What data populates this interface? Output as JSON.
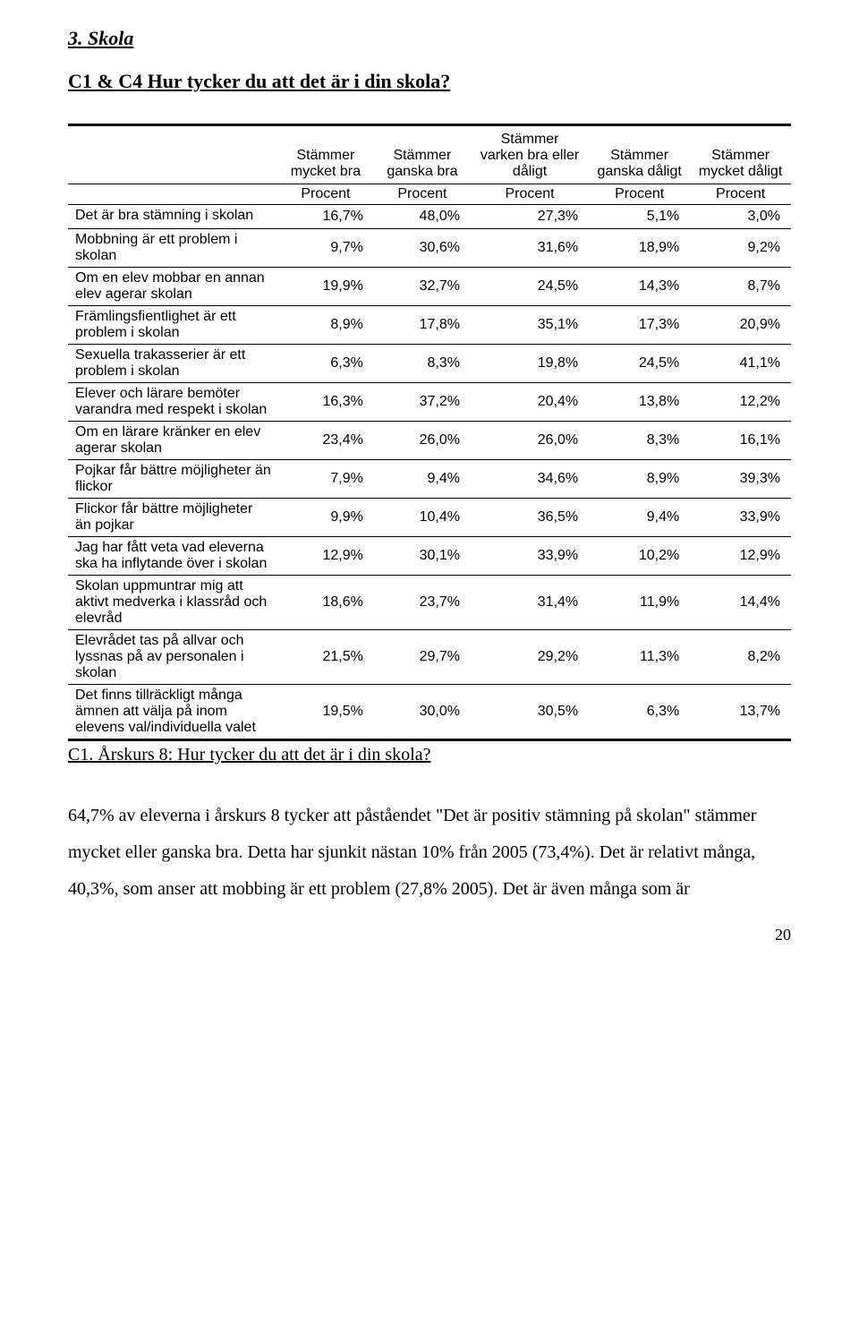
{
  "section_heading": "3. Skola",
  "sub_heading": "C1 & C4 Hur tycker du att det är i din skola?",
  "table": {
    "header1_blank": "",
    "col_headers": [
      "Stämmer mycket bra",
      "Stämmer ganska bra",
      "Stämmer varken bra eller dåligt",
      "Stämmer ganska dåligt",
      "Stämmer mycket dåligt"
    ],
    "subheader": "Procent",
    "rows": [
      {
        "label": "Det är bra stämning i skolan",
        "vals": [
          "16,7%",
          "48,0%",
          "27,3%",
          "5,1%",
          "3,0%"
        ]
      },
      {
        "label": "Mobbning är ett problem i skolan",
        "vals": [
          "9,7%",
          "30,6%",
          "31,6%",
          "18,9%",
          "9,2%"
        ]
      },
      {
        "label": "Om en elev mobbar en annan elev agerar skolan",
        "vals": [
          "19,9%",
          "32,7%",
          "24,5%",
          "14,3%",
          "8,7%"
        ]
      },
      {
        "label": "Främlingsfientlighet är ett problem i skolan",
        "vals": [
          "8,9%",
          "17,8%",
          "35,1%",
          "17,3%",
          "20,9%"
        ]
      },
      {
        "label": "Sexuella trakasserier är ett problem i skolan",
        "vals": [
          "6,3%",
          "8,3%",
          "19,8%",
          "24,5%",
          "41,1%"
        ]
      },
      {
        "label": "Elever och lärare bemöter varandra med respekt i skolan",
        "vals": [
          "16,3%",
          "37,2%",
          "20,4%",
          "13,8%",
          "12,2%"
        ]
      },
      {
        "label": "Om en lärare kränker en elev agerar skolan",
        "vals": [
          "23,4%",
          "26,0%",
          "26,0%",
          "8,3%",
          "16,1%"
        ]
      },
      {
        "label": "Pojkar får bättre möjligheter än flickor",
        "vals": [
          "7,9%",
          "9,4%",
          "34,6%",
          "8,9%",
          "39,3%"
        ]
      },
      {
        "label": "Flickor får bättre möjligheter än pojkar",
        "vals": [
          "9,9%",
          "10,4%",
          "36,5%",
          "9,4%",
          "33,9%"
        ]
      },
      {
        "label": "Jag har fått veta vad eleverna ska ha inflytande över i skolan",
        "vals": [
          "12,9%",
          "30,1%",
          "33,9%",
          "10,2%",
          "12,9%"
        ]
      },
      {
        "label": "Skolan uppmuntrar mig att aktivt medverka i klassråd och elevråd",
        "vals": [
          "18,6%",
          "23,7%",
          "31,4%",
          "11,9%",
          "14,4%"
        ]
      },
      {
        "label": "Elevrådet tas på allvar och lyssnas på av personalen i skolan",
        "vals": [
          "21,5%",
          "29,7%",
          "29,2%",
          "11,3%",
          "8,2%"
        ]
      },
      {
        "label": "Det finns tillräckligt många ämnen att välja på inom elevens val/individuella valet",
        "vals": [
          "19,5%",
          "30,0%",
          "30,5%",
          "6,3%",
          "13,7%"
        ]
      }
    ]
  },
  "caption": "C1. Årskurs 8: Hur tycker du att det är i din skola?",
  "body_paragraph": "64,7% av eleverna i årskurs 8 tycker att påståendet \"Det är positiv stämning på skolan\" stämmer mycket eller ganska bra. Detta har sjunkit nästan 10% från 2005 (73,4%). Det är relativt många, 40,3%, som anser att mobbing är ett problem (27,8% 2005). Det är även många som är",
  "page_number": "20"
}
